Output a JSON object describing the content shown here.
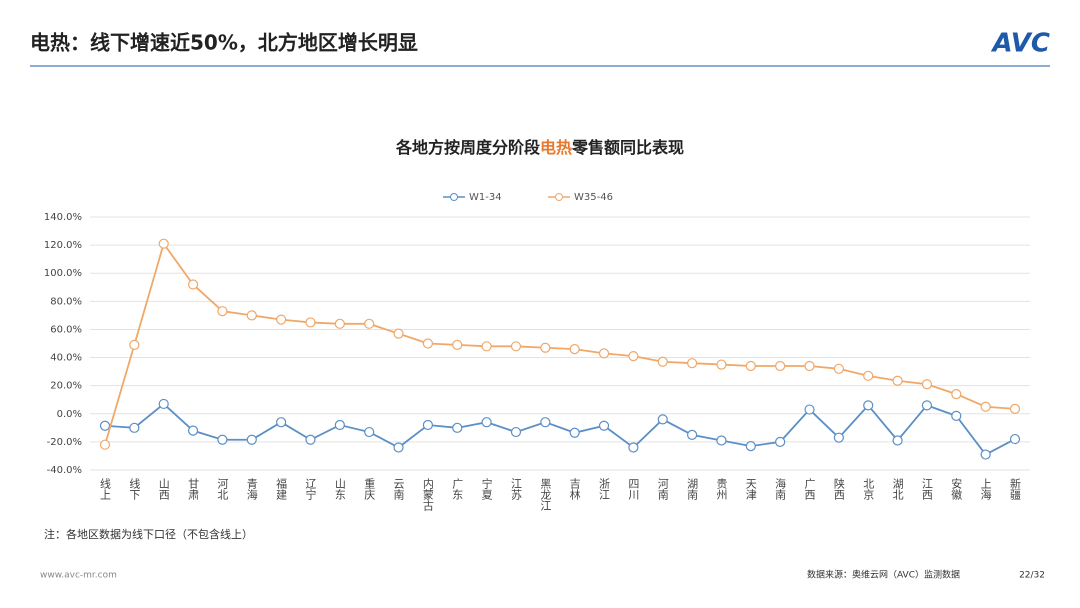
{
  "header": {
    "title": "电热：线下增速近50%，北方地区增长明显",
    "logo": "AVC"
  },
  "note": "注：各地区数据为线下口径（不包含线上）",
  "footer": {
    "website": "www.avc-mr.com",
    "source": "数据来源：奥维云网（AVC）监测数据",
    "page": "22/32"
  },
  "chart_data": {
    "type": "line",
    "title_parts": [
      "各地方按周度分阶段",
      "电热",
      "零售额同比表现"
    ],
    "categories": [
      "线上",
      "线下",
      "山西",
      "甘肃",
      "河北",
      "青海",
      "福建",
      "辽宁",
      "山东",
      "重庆",
      "云南",
      "内蒙古",
      "广东",
      "宁夏",
      "江苏",
      "黑龙江",
      "吉林",
      "浙江",
      "四川",
      "河南",
      "湖南",
      "贵州",
      "天津",
      "海南",
      "广西",
      "陕西",
      "北京",
      "湖北",
      "江西",
      "安徽",
      "上海",
      "新疆"
    ],
    "series": [
      {
        "name": "W1-34",
        "color": "#5b8fc7",
        "values": [
          -8.5,
          -10,
          7,
          -12,
          -18.5,
          -18.5,
          -6,
          -18.5,
          -8,
          -13,
          -24,
          -8,
          -10,
          -6,
          -13,
          -6,
          -13.5,
          -8.5,
          -24,
          -4,
          -15,
          -19,
          -23,
          -20,
          3,
          -17,
          6,
          -19,
          6,
          -1.5,
          -29,
          -18
        ]
      },
      {
        "name": "W35-46",
        "color": "#f0a868",
        "values": [
          -22,
          49,
          121,
          92,
          73,
          70,
          67,
          65,
          64,
          64,
          57,
          50,
          49,
          48,
          48,
          47,
          46,
          43,
          41,
          37,
          36,
          35,
          34,
          34,
          34,
          32,
          27,
          23.5,
          21,
          14,
          5,
          3.5
        ]
      }
    ],
    "ylim": [
      -40,
      140
    ],
    "yticks": [
      {
        "value": -40,
        "label": "-40.0%"
      },
      {
        "value": -20,
        "label": "-20.0%"
      },
      {
        "value": 0,
        "label": "0.0%"
      },
      {
        "value": 20,
        "label": "20.0%"
      },
      {
        "value": 40,
        "label": "40.0%"
      },
      {
        "value": 60,
        "label": "60.0%"
      },
      {
        "value": 80,
        "label": "80.0%"
      },
      {
        "value": 100,
        "label": "100.0%"
      },
      {
        "value": 120,
        "label": "120.0%"
      },
      {
        "value": 140,
        "label": "140.0%"
      }
    ],
    "grid": true,
    "legend": "top",
    "highlight_color": "#e8792b"
  }
}
